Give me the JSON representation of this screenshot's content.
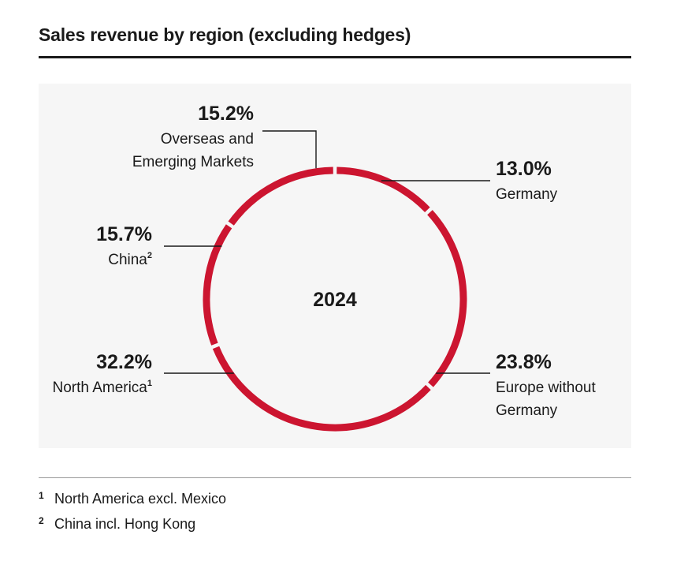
{
  "title": "Sales revenue by region (excluding hedges)",
  "colors": {
    "ring": "#cc1530",
    "text": "#1a1a1a",
    "panel": "#f6f6f6",
    "rule": "#9a9a9a"
  },
  "chart_data": {
    "type": "pie",
    "variant": "donut-ring",
    "title": "Sales revenue by region (excluding hedges)",
    "center_label": "2024",
    "unit": "%",
    "slices": [
      {
        "label": "Germany",
        "label_lines": [
          "Germany"
        ],
        "sup": "",
        "value": 13.0,
        "value_label": "13.0%"
      },
      {
        "label": "Europe without Germany",
        "label_lines": [
          "Europe without",
          "Germany"
        ],
        "sup": "",
        "value": 23.8,
        "value_label": "23.8%"
      },
      {
        "label": "North America",
        "label_lines": [
          "North America"
        ],
        "sup": "1",
        "value": 32.2,
        "value_label": "32.2%"
      },
      {
        "label": "China",
        "label_lines": [
          "China"
        ],
        "sup": "2",
        "value": 15.7,
        "value_label": "15.7%"
      },
      {
        "label": "Overseas and Emerging Markets",
        "label_lines": [
          "Overseas and",
          "Emerging Markets"
        ],
        "sup": "",
        "value": 15.2,
        "value_label": "15.2%"
      }
    ]
  },
  "footnotes": [
    {
      "mark": "1",
      "text": "North America excl. Mexico"
    },
    {
      "mark": "2",
      "text": "China incl. Hong Kong"
    }
  ]
}
